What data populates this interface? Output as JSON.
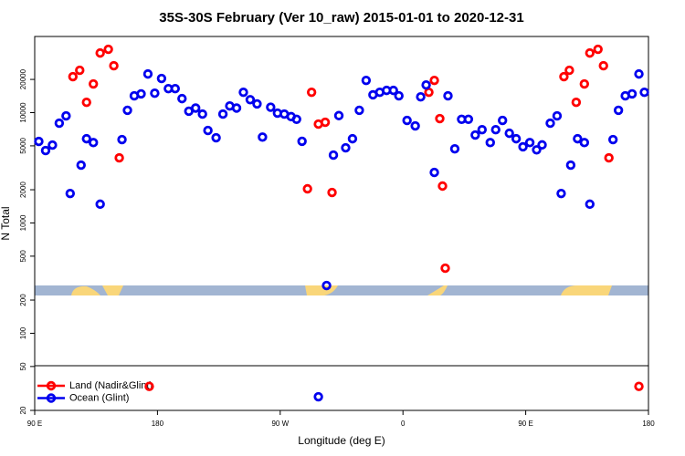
{
  "chart_data": {
    "type": "scatter",
    "title": "35S-30S February (Ver 10_raw)   2015-01-01 to 2020-12-31",
    "x_label": "Longitude (deg E)",
    "y_label": "N Total",
    "log_y": true,
    "legend": "bottom-left",
    "xlim": [
      90,
      540
    ],
    "xticks": [
      {
        "value": 90,
        "label": "90 E"
      },
      180,
      {
        "value": 270,
        "label": "90 W"
      },
      {
        "value": 360,
        "label": "0"
      },
      {
        "value": 450,
        "label": "90 E"
      },
      {
        "value": 540,
        "label": "180"
      }
    ],
    "ylim": [
      20,
      49000
    ],
    "yticks": [
      20,
      50,
      100,
      200,
      500,
      1000,
      2000,
      5000,
      10000,
      20000
    ],
    "series": [
      {
        "name": "Land (Nadir&Glint)",
        "color": "#ff0000",
        "x": [
          118,
          123,
          128,
          133,
          138,
          144,
          148,
          152,
          174,
          290,
          293,
          298,
          303,
          308,
          379,
          383,
          387,
          389,
          391,
          478,
          482,
          487,
          493,
          497,
          503,
          507,
          511,
          533
        ],
        "values": [
          21200,
          24200,
          12400,
          18200,
          34700,
          37500,
          26600,
          3890,
          33,
          2040,
          15300,
          7870,
          8180,
          1890,
          15300,
          19600,
          8830,
          2160,
          389,
          21200,
          24200,
          12400,
          18200,
          34700,
          37500,
          26600,
          3890,
          33
        ]
      },
      {
        "name": "Ocean (Glint)",
        "color": "#0000ee",
        "x": [
          93,
          98,
          103,
          108,
          113,
          116,
          124,
          128,
          133,
          138,
          154,
          158,
          163,
          168,
          173,
          178,
          183,
          188,
          193,
          198,
          203,
          208,
          213,
          217,
          223,
          228,
          233,
          238,
          243,
          248,
          253,
          257,
          263,
          268,
          273,
          278,
          282,
          286,
          304,
          298,
          309,
          313,
          318,
          323,
          328,
          333,
          338,
          343,
          348,
          353,
          357,
          363,
          369,
          373,
          377,
          383,
          393,
          398,
          403,
          408,
          413,
          418,
          424,
          428,
          433,
          438,
          443,
          448,
          453,
          458,
          462,
          468,
          473,
          476,
          483,
          488,
          493,
          497,
          514,
          518,
          523,
          528,
          533,
          537
        ],
        "values": [
          5480,
          4530,
          5080,
          8020,
          9340,
          1850,
          3340,
          5800,
          5350,
          1480,
          5700,
          10500,
          14200,
          14800,
          22400,
          15000,
          20400,
          16500,
          16500,
          13400,
          10300,
          11000,
          9700,
          6890,
          5920,
          9700,
          11500,
          11000,
          15300,
          13100,
          12000,
          6000,
          11200,
          9900,
          9700,
          9200,
          8700,
          5500,
          271,
          26.6,
          4120,
          9400,
          4800,
          5800,
          10500,
          19600,
          14500,
          15300,
          15900,
          15900,
          14200,
          8500,
          7580,
          13900,
          17800,
          2870,
          14200,
          4700,
          8700,
          8700,
          6270,
          7000,
          5350,
          7000,
          8500,
          6500,
          5800,
          4900,
          5350,
          4600,
          5100,
          8020,
          9340,
          1850,
          3340,
          5800,
          5350,
          1480,
          5700,
          10500,
          14200,
          14800,
          22400,
          15300
        ]
      }
    ]
  }
}
